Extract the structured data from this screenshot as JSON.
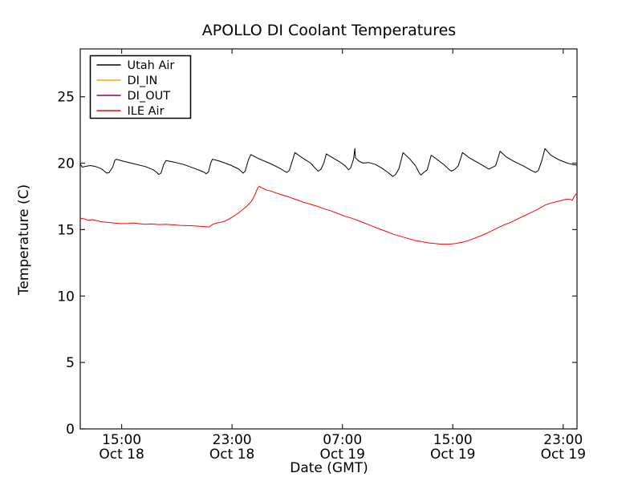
{
  "chart_data": {
    "type": "line",
    "title": "APOLLO DI Coolant Temperatures",
    "xlabel": "Date (GMT)",
    "ylabel": "Temperature (C)",
    "x_unit": "hours_since_Oct18_0000_GMT",
    "xlim": [
      12,
      48
    ],
    "ylim": [
      0,
      28.6
    ],
    "grid": false,
    "legend_position": "upper left",
    "frame_color": "#222222",
    "x_ticks": [
      {
        "value": 15,
        "time": "15:00",
        "date": "Oct 18"
      },
      {
        "value": 23,
        "time": "23:00",
        "date": "Oct 18"
      },
      {
        "value": 31,
        "time": "07:00",
        "date": "Oct 19"
      },
      {
        "value": 39,
        "time": "15:00",
        "date": "Oct 19"
      },
      {
        "value": 47,
        "time": "23:00",
        "date": "Oct 19"
      }
    ],
    "y_ticks": [
      {
        "value": 0,
        "label": "0"
      },
      {
        "value": 5,
        "label": "5"
      },
      {
        "value": 10,
        "label": "10"
      },
      {
        "value": 15,
        "label": "15"
      },
      {
        "value": 20,
        "label": "20"
      },
      {
        "value": 25,
        "label": "25"
      }
    ],
    "series": [
      {
        "name": "Utah Air",
        "color": "#000000",
        "width": 1,
        "points": [
          [
            12.0,
            19.95
          ],
          [
            12.15,
            19.7
          ],
          [
            12.45,
            19.78
          ],
          [
            12.75,
            19.82
          ],
          [
            13.1,
            19.75
          ],
          [
            13.5,
            19.6
          ],
          [
            13.75,
            19.4
          ],
          [
            13.92,
            19.25
          ],
          [
            14.1,
            19.3
          ],
          [
            14.35,
            19.7
          ],
          [
            14.5,
            20.2
          ],
          [
            14.61,
            20.3
          ],
          [
            15.1,
            20.15
          ],
          [
            15.9,
            19.95
          ],
          [
            16.7,
            19.75
          ],
          [
            17.3,
            19.5
          ],
          [
            17.55,
            19.3
          ],
          [
            17.69,
            19.15
          ],
          [
            17.85,
            19.25
          ],
          [
            18.05,
            19.9
          ],
          [
            18.21,
            20.2
          ],
          [
            18.7,
            20.1
          ],
          [
            19.5,
            19.9
          ],
          [
            20.3,
            19.6
          ],
          [
            20.8,
            19.4
          ],
          [
            21.0,
            19.3
          ],
          [
            21.12,
            19.2
          ],
          [
            21.3,
            19.35
          ],
          [
            21.45,
            20.0
          ],
          [
            21.58,
            20.3
          ],
          [
            22.1,
            20.15
          ],
          [
            22.9,
            19.85
          ],
          [
            23.5,
            19.55
          ],
          [
            23.7,
            19.35
          ],
          [
            23.79,
            19.25
          ],
          [
            23.95,
            19.4
          ],
          [
            24.2,
            20.3
          ],
          [
            24.37,
            20.65
          ],
          [
            24.9,
            20.35
          ],
          [
            25.7,
            20.0
          ],
          [
            26.4,
            19.65
          ],
          [
            26.8,
            19.4
          ],
          [
            26.98,
            19.3
          ],
          [
            27.15,
            19.45
          ],
          [
            27.35,
            20.1
          ],
          [
            27.56,
            20.8
          ],
          [
            28.1,
            20.4
          ],
          [
            28.7,
            20.0
          ],
          [
            29.05,
            19.6
          ],
          [
            29.25,
            19.4
          ],
          [
            29.45,
            19.55
          ],
          [
            29.65,
            20.0
          ],
          [
            29.83,
            20.7
          ],
          [
            30.3,
            20.4
          ],
          [
            30.8,
            20.1
          ],
          [
            31.2,
            19.8
          ],
          [
            31.45,
            19.5
          ],
          [
            31.6,
            19.65
          ],
          [
            31.8,
            20.3
          ],
          [
            31.9,
            21.1
          ],
          [
            31.94,
            20.4
          ],
          [
            32.2,
            20.15
          ],
          [
            32.5,
            20.0
          ],
          [
            32.9,
            20.05
          ],
          [
            33.4,
            19.9
          ],
          [
            33.9,
            19.6
          ],
          [
            34.3,
            19.3
          ],
          [
            34.65,
            19.0
          ],
          [
            34.85,
            19.15
          ],
          [
            35.1,
            19.6
          ],
          [
            35.4,
            20.8
          ],
          [
            35.9,
            20.3
          ],
          [
            36.3,
            19.8
          ],
          [
            36.55,
            19.3
          ],
          [
            36.68,
            19.1
          ],
          [
            36.9,
            19.3
          ],
          [
            37.15,
            19.5
          ],
          [
            37.43,
            20.6
          ],
          [
            37.9,
            20.25
          ],
          [
            38.4,
            19.85
          ],
          [
            38.7,
            19.55
          ],
          [
            38.89,
            19.4
          ],
          [
            39.1,
            19.5
          ],
          [
            39.4,
            19.8
          ],
          [
            39.7,
            20.8
          ],
          [
            40.2,
            20.4
          ],
          [
            40.8,
            20.05
          ],
          [
            41.3,
            19.75
          ],
          [
            41.61,
            19.55
          ],
          [
            41.8,
            19.65
          ],
          [
            42.1,
            19.8
          ],
          [
            42.43,
            20.9
          ],
          [
            42.9,
            20.45
          ],
          [
            43.5,
            20.1
          ],
          [
            44.1,
            19.8
          ],
          [
            44.6,
            19.5
          ],
          [
            44.98,
            19.3
          ],
          [
            45.2,
            19.45
          ],
          [
            45.45,
            20.2
          ],
          [
            45.68,
            21.1
          ],
          [
            46.1,
            20.6
          ],
          [
            46.7,
            20.25
          ],
          [
            47.3,
            20.0
          ],
          [
            47.7,
            19.9
          ],
          [
            48.0,
            19.85
          ]
        ]
      },
      {
        "name": "DI_IN",
        "color": "#ffa500",
        "width": 1,
        "points": []
      },
      {
        "name": "DI_OUT",
        "color": "#800080",
        "width": 1,
        "points": []
      },
      {
        "name": "ILE Air",
        "color": "#ff0000",
        "width": 1,
        "points": [
          [
            12.0,
            15.85
          ],
          [
            12.3,
            15.8
          ],
          [
            12.6,
            15.7
          ],
          [
            12.85,
            15.75
          ],
          [
            13.1,
            15.7
          ],
          [
            13.5,
            15.6
          ],
          [
            13.9,
            15.55
          ],
          [
            14.4,
            15.5
          ],
          [
            14.9,
            15.45
          ],
          [
            15.4,
            15.45
          ],
          [
            15.8,
            15.5
          ],
          [
            16.2,
            15.45
          ],
          [
            16.7,
            15.4
          ],
          [
            17.2,
            15.42
          ],
          [
            17.7,
            15.38
          ],
          [
            18.2,
            15.4
          ],
          [
            18.7,
            15.36
          ],
          [
            19.2,
            15.32
          ],
          [
            19.7,
            15.3
          ],
          [
            20.2,
            15.28
          ],
          [
            20.7,
            15.25
          ],
          [
            21.1,
            15.22
          ],
          [
            21.35,
            15.2
          ],
          [
            21.6,
            15.4
          ],
          [
            21.9,
            15.5
          ],
          [
            22.2,
            15.55
          ],
          [
            22.5,
            15.65
          ],
          [
            22.8,
            15.8
          ],
          [
            23.1,
            16.0
          ],
          [
            23.4,
            16.2
          ],
          [
            23.7,
            16.45
          ],
          [
            24.0,
            16.7
          ],
          [
            24.2,
            16.9
          ],
          [
            24.45,
            17.2
          ],
          [
            24.6,
            17.5
          ],
          [
            24.75,
            17.85
          ],
          [
            24.89,
            18.2
          ],
          [
            25.0,
            18.25
          ],
          [
            25.15,
            18.15
          ],
          [
            25.45,
            18.0
          ],
          [
            25.8,
            17.9
          ],
          [
            26.2,
            17.75
          ],
          [
            26.6,
            17.62
          ],
          [
            27.0,
            17.5
          ],
          [
            27.4,
            17.35
          ],
          [
            27.8,
            17.2
          ],
          [
            28.2,
            17.05
          ],
          [
            28.7,
            16.9
          ],
          [
            29.2,
            16.75
          ],
          [
            29.7,
            16.55
          ],
          [
            30.2,
            16.4
          ],
          [
            30.7,
            16.2
          ],
          [
            31.2,
            16.0
          ],
          [
            31.7,
            15.85
          ],
          [
            32.2,
            15.65
          ],
          [
            32.7,
            15.45
          ],
          [
            33.2,
            15.25
          ],
          [
            33.7,
            15.05
          ],
          [
            34.2,
            14.85
          ],
          [
            34.7,
            14.65
          ],
          [
            35.2,
            14.5
          ],
          [
            35.7,
            14.35
          ],
          [
            36.2,
            14.2
          ],
          [
            36.7,
            14.1
          ],
          [
            37.2,
            14.0
          ],
          [
            37.7,
            13.95
          ],
          [
            38.2,
            13.9
          ],
          [
            38.7,
            13.9
          ],
          [
            39.2,
            13.95
          ],
          [
            39.7,
            14.05
          ],
          [
            40.2,
            14.2
          ],
          [
            40.7,
            14.4
          ],
          [
            41.2,
            14.6
          ],
          [
            41.7,
            14.85
          ],
          [
            42.2,
            15.1
          ],
          [
            42.7,
            15.35
          ],
          [
            43.2,
            15.55
          ],
          [
            43.7,
            15.8
          ],
          [
            44.2,
            16.05
          ],
          [
            44.7,
            16.3
          ],
          [
            45.2,
            16.55
          ],
          [
            45.7,
            16.85
          ],
          [
            46.1,
            17.0
          ],
          [
            46.5,
            17.1
          ],
          [
            46.9,
            17.2
          ],
          [
            47.2,
            17.28
          ],
          [
            47.5,
            17.28
          ],
          [
            47.65,
            17.2
          ],
          [
            47.8,
            17.5
          ],
          [
            48.0,
            17.75
          ]
        ]
      }
    ]
  }
}
